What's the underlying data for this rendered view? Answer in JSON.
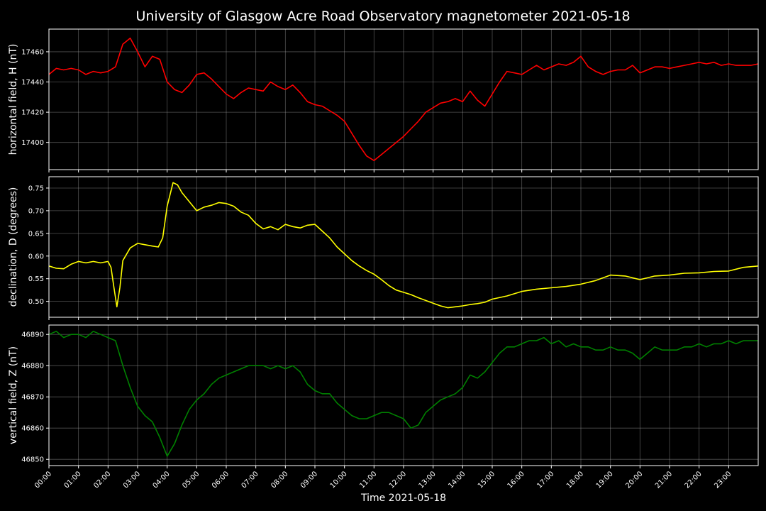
{
  "chart_data": {
    "type": "line",
    "title": "University of Glasgow Acre Road Observatory magnetometer 2021-05-18",
    "xlabel": "Time 2021-05-18",
    "x_ticks": [
      "00:00",
      "01:00",
      "02:00",
      "03:00",
      "04:00",
      "05:00",
      "06:00",
      "07:00",
      "08:00",
      "09:00",
      "10:00",
      "11:00",
      "12:00",
      "13:00",
      "14:00",
      "15:00",
      "16:00",
      "17:00",
      "18:00",
      "19:00",
      "20:00",
      "21:00",
      "22:00",
      "23:00"
    ],
    "x_range_hours": [
      0,
      24
    ],
    "grid": true,
    "panels": [
      {
        "ylabel": "horizontal field, H (nT)",
        "unit": "nT",
        "color": "#ff0000",
        "ylim": [
          17382,
          17475
        ],
        "yticks": [
          17400,
          17420,
          17440,
          17460
        ],
        "ytick_labels": [
          "17400",
          "17420",
          "17440",
          "17460"
        ],
        "series": {
          "x": [
            0,
            0.25,
            0.5,
            0.75,
            1,
            1.25,
            1.5,
            1.75,
            2,
            2.25,
            2.5,
            2.75,
            3,
            3.25,
            3.5,
            3.75,
            4,
            4.25,
            4.5,
            4.75,
            5,
            5.25,
            5.5,
            5.75,
            6,
            6.25,
            6.5,
            6.75,
            7,
            7.25,
            7.5,
            7.75,
            8,
            8.25,
            8.5,
            8.75,
            9,
            9.25,
            9.5,
            9.75,
            10,
            10.25,
            10.5,
            10.75,
            11,
            11.25,
            11.5,
            11.75,
            12,
            12.25,
            12.5,
            12.75,
            13,
            13.25,
            13.5,
            13.75,
            14,
            14.25,
            14.5,
            14.75,
            15,
            15.25,
            15.5,
            15.75,
            16,
            16.25,
            16.5,
            16.75,
            17,
            17.25,
            17.5,
            17.75,
            18,
            18.25,
            18.5,
            18.75,
            19,
            19.25,
            19.5,
            19.75,
            20,
            20.25,
            20.5,
            20.75,
            21,
            21.25,
            21.5,
            21.75,
            22,
            22.25,
            22.5,
            22.75,
            23,
            23.25,
            23.5,
            23.75,
            24
          ],
          "values": [
            17445,
            17449,
            17448,
            17449,
            17448,
            17445,
            17447,
            17446,
            17447,
            17450,
            17465,
            17469,
            17460,
            17450,
            17457,
            17455,
            17440,
            17435,
            17433,
            17438,
            17445,
            17446,
            17442,
            17437,
            17432,
            17429,
            17433,
            17436,
            17435,
            17434,
            17440,
            17437,
            17435,
            17438,
            17433,
            17427,
            17425,
            17424,
            17421,
            17418,
            17414,
            17406,
            17398,
            17391,
            17388,
            17392,
            17396,
            17400,
            17404,
            17409,
            17414,
            17420,
            17423,
            17426,
            17427,
            17429,
            17427,
            17434,
            17428,
            17424,
            17432,
            17440,
            17447,
            17446,
            17445,
            17448,
            17451,
            17448,
            17450,
            17452,
            17451,
            17453,
            17457,
            17450,
            17447,
            17445,
            17447,
            17448,
            17448,
            17451,
            17446,
            17448,
            17450,
            17450,
            17449,
            17450,
            17451,
            17452,
            17453,
            17452,
            17453,
            17451,
            17452,
            17451,
            17451,
            17451,
            17452
          ]
        }
      },
      {
        "ylabel": "declination, D (degrees)",
        "unit": "degrees",
        "color": "#ffff00",
        "ylim": [
          0.465,
          0.775
        ],
        "yticks": [
          0.5,
          0.55,
          0.6,
          0.65,
          0.7,
          0.75
        ],
        "ytick_labels": [
          "0.50",
          "0.55",
          "0.60",
          "0.65",
          "0.70",
          "0.75"
        ],
        "series": {
          "x": [
            0,
            0.25,
            0.5,
            0.75,
            1,
            1.25,
            1.5,
            1.75,
            2,
            2.1,
            2.2,
            2.3,
            2.4,
            2.5,
            2.75,
            3,
            3.25,
            3.5,
            3.7,
            3.85,
            4,
            4.2,
            4.35,
            4.5,
            4.75,
            5,
            5.25,
            5.5,
            5.75,
            6,
            6.25,
            6.5,
            6.75,
            7,
            7.25,
            7.5,
            7.75,
            8,
            8.25,
            8.5,
            8.75,
            9,
            9.25,
            9.5,
            9.75,
            10,
            10.25,
            10.5,
            10.75,
            11,
            11.25,
            11.5,
            11.75,
            12,
            12.25,
            12.5,
            12.75,
            13,
            13.25,
            13.5,
            13.75,
            14,
            14.25,
            14.5,
            14.75,
            15,
            15.5,
            16,
            16.5,
            17,
            17.5,
            18,
            18.5,
            19,
            19.5,
            20,
            20.5,
            21,
            21.5,
            22,
            22.5,
            23,
            23.5,
            24
          ],
          "values": [
            0.578,
            0.573,
            0.572,
            0.582,
            0.588,
            0.585,
            0.588,
            0.585,
            0.588,
            0.575,
            0.53,
            0.488,
            0.53,
            0.59,
            0.618,
            0.628,
            0.625,
            0.622,
            0.62,
            0.64,
            0.71,
            0.762,
            0.757,
            0.74,
            0.72,
            0.7,
            0.708,
            0.712,
            0.718,
            0.716,
            0.71,
            0.697,
            0.69,
            0.672,
            0.66,
            0.665,
            0.658,
            0.67,
            0.665,
            0.662,
            0.668,
            0.67,
            0.655,
            0.64,
            0.62,
            0.605,
            0.59,
            0.578,
            0.568,
            0.56,
            0.548,
            0.535,
            0.525,
            0.52,
            0.515,
            0.508,
            0.502,
            0.496,
            0.49,
            0.486,
            0.488,
            0.49,
            0.493,
            0.495,
            0.498,
            0.505,
            0.512,
            0.522,
            0.527,
            0.53,
            0.533,
            0.538,
            0.546,
            0.558,
            0.556,
            0.548,
            0.556,
            0.558,
            0.562,
            0.563,
            0.566,
            0.567,
            0.575,
            0.578
          ]
        }
      },
      {
        "ylabel": "vertical field, Z (nT)",
        "unit": "nT",
        "color": "#008000",
        "ylim": [
          46848,
          46893
        ],
        "yticks": [
          46850,
          46860,
          46870,
          46880,
          46890
        ],
        "ytick_labels": [
          "46850",
          "46860",
          "46870",
          "46880",
          "46890"
        ],
        "series": {
          "x": [
            0,
            0.25,
            0.5,
            0.75,
            1,
            1.25,
            1.5,
            1.75,
            2,
            2.25,
            2.5,
            2.75,
            3,
            3.25,
            3.5,
            3.75,
            4,
            4.25,
            4.5,
            4.75,
            5,
            5.25,
            5.5,
            5.75,
            6,
            6.25,
            6.5,
            6.75,
            7,
            7.25,
            7.5,
            7.75,
            8,
            8.25,
            8.5,
            8.75,
            9,
            9.25,
            9.5,
            9.75,
            10,
            10.25,
            10.5,
            10.75,
            11,
            11.25,
            11.5,
            11.75,
            12,
            12.25,
            12.5,
            12.75,
            13,
            13.25,
            13.5,
            13.75,
            14,
            14.25,
            14.5,
            14.75,
            15,
            15.25,
            15.5,
            15.75,
            16,
            16.25,
            16.5,
            16.75,
            17,
            17.25,
            17.5,
            17.75,
            18,
            18.25,
            18.5,
            18.75,
            19,
            19.25,
            19.5,
            19.75,
            20,
            20.25,
            20.5,
            20.75,
            21,
            21.25,
            21.5,
            21.75,
            22,
            22.25,
            22.5,
            22.75,
            23,
            23.25,
            23.5,
            23.75,
            24
          ],
          "values": [
            46890,
            46891,
            46889,
            46890,
            46890,
            46889,
            46891,
            46890,
            46889,
            46888,
            46880,
            46873,
            46867,
            46864,
            46862,
            46857,
            46851,
            46855,
            46861,
            46866,
            46869,
            46871,
            46874,
            46876,
            46877,
            46878,
            46879,
            46880,
            46880,
            46880,
            46879,
            46880,
            46879,
            46880,
            46878,
            46874,
            46872,
            46871,
            46871,
            46868,
            46866,
            46864,
            46863,
            46863,
            46864,
            46865,
            46865,
            46864,
            46863,
            46860,
            46861,
            46865,
            46867,
            46869,
            46870,
            46871,
            46873,
            46877,
            46876,
            46878,
            46881,
            46884,
            46886,
            46886,
            46887,
            46888,
            46888,
            46889,
            46887,
            46888,
            46886,
            46887,
            46886,
            46886,
            46885,
            46885,
            46886,
            46885,
            46885,
            46884,
            46882,
            46884,
            46886,
            46885,
            46885,
            46885,
            46886,
            46886,
            46887,
            46886,
            46887,
            46887,
            46888,
            46887,
            46888,
            46888,
            46888
          ]
        }
      }
    ]
  }
}
